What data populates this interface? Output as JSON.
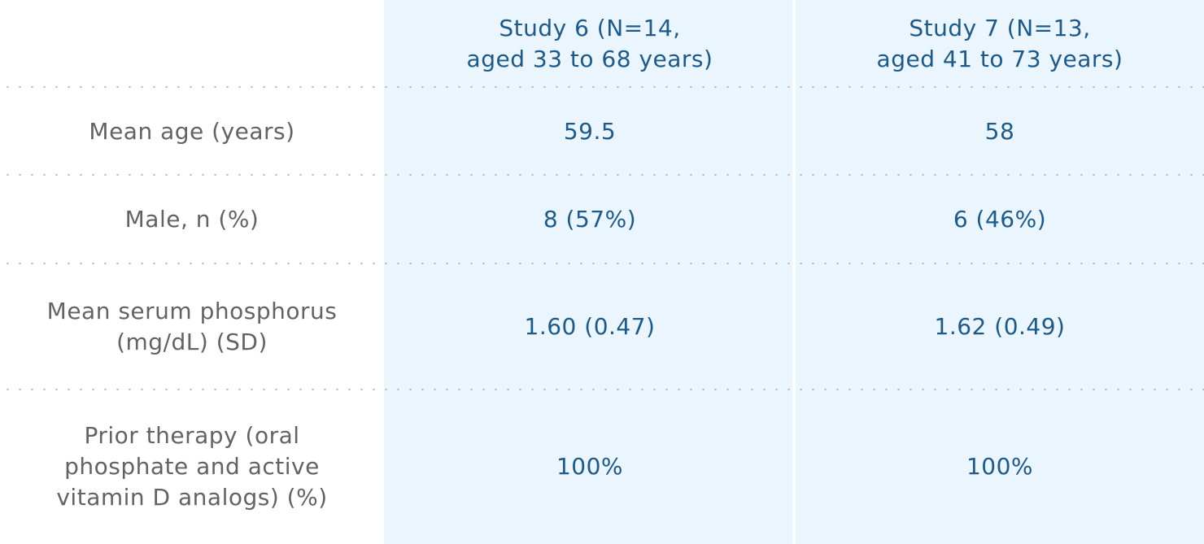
{
  "table": {
    "headers": {
      "col1": "Study 6 (N=14,\naged 33 to 68 years)",
      "col2": "Study 7 (N=13,\naged 41 to 73 years)"
    },
    "rows": [
      {
        "label": "Mean age (years)",
        "col1": "59.5",
        "col2": "58"
      },
      {
        "label": "Male, n (%)",
        "col1": "8 (57%)",
        "col2": "6 (46%)"
      },
      {
        "label": "Mean serum phosphorus\n(mg/dL) (SD)",
        "col1": "1.60 (0.47)",
        "col2": "1.62 (0.49)"
      },
      {
        "label": "Prior therapy (oral\nphosphate and active\nvitamin D analogs) (%)",
        "col1": "100%",
        "col2": "100%"
      }
    ],
    "colors": {
      "column_background": "#eaf5fd",
      "value_text": "#1c5a8c",
      "label_text": "#636363",
      "divider": "#b5b5b5"
    }
  }
}
